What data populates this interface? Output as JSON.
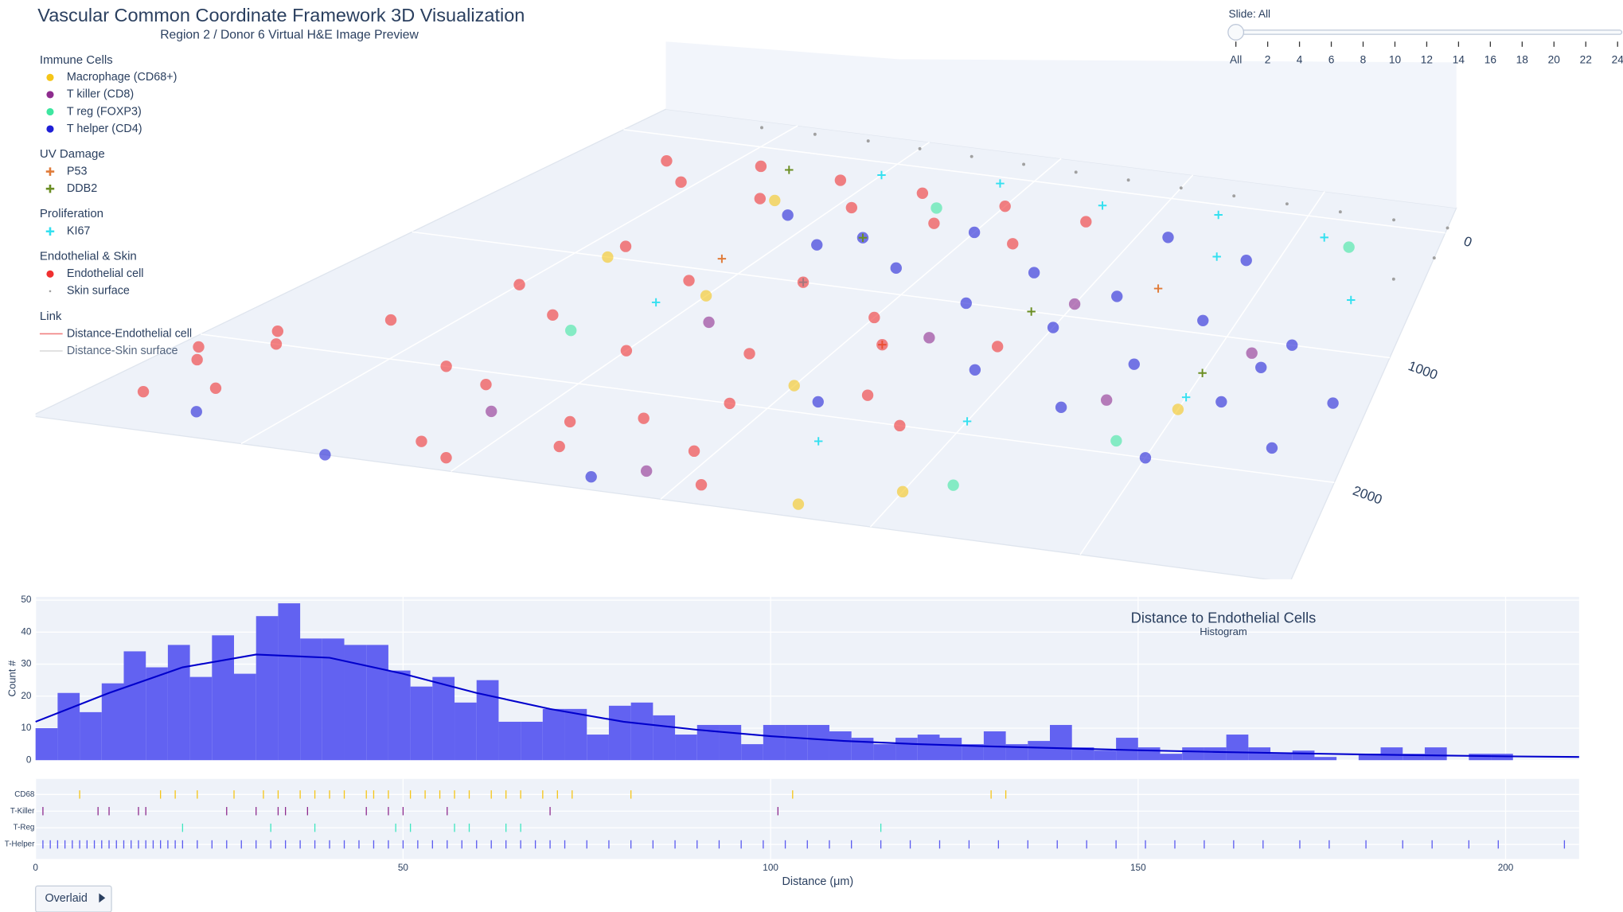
{
  "header": {
    "title": "Vascular Common Coordinate Framework 3D Visualization",
    "subtitle": "Region 2 / Donor 6  Virtual H&E Image Preview"
  },
  "slider": {
    "label": "Slide: All",
    "steps": [
      "All",
      "2",
      "4",
      "6",
      "8",
      "10",
      "12",
      "14",
      "16",
      "18",
      "20",
      "22",
      "24"
    ]
  },
  "button": {
    "label": "Overlaid"
  },
  "chart_data": [
    {
      "type": "scatter3d",
      "xlim": [
        0,
        3000
      ],
      "ylim": [
        -200,
        2800
      ],
      "yticks": [
        0,
        1000,
        2000
      ],
      "legend_groups": [
        {
          "title": "Immune Cells",
          "series": [
            {
              "name": "Macrophage (CD68+)",
              "color": "#f5c518",
              "symbol": "circle",
              "x": [
                1000,
                1500,
                2000,
                2500,
                800,
                1800,
                600
              ],
              "y": [
                1200,
                1800,
                2500,
                1600,
                400,
                2700,
                1000
              ]
            },
            {
              "name": "T killer (CD8)",
              "color": "#8e2c8e",
              "symbol": "circle",
              "x": [
                1100,
                1700,
                2300,
                2600,
                900,
                2000,
                1400
              ],
              "y": [
                1400,
                1300,
                1600,
                1100,
                2300,
                900,
                2600
              ]
            },
            {
              "name": "T reg (FOXP3)",
              "color": "#3ee6a0",
              "symbol": "circle",
              "x": [
                1300,
                2700,
                2100,
                800,
                2400
              ],
              "y": [
                300,
                200,
                2400,
                1600,
                1900
              ]
            },
            {
              "name": "T helper (CD4)",
              "color": "#1f1fd6",
              "symbol": "circle",
              "x": [
                900,
                1200,
                1500,
                1800,
                2100,
                2400,
                2700,
                2600,
                2300,
                2000,
                1700,
                1400,
                1100,
                2800,
                2500,
                2200,
                1900,
                1600,
                300,
                700,
                2650,
                2400,
                2100,
                2900,
                1300
              ],
              "y": [
                500,
                600,
                450,
                700,
                800,
                900,
                1000,
                1500,
                1300,
                1100,
                1000,
                800,
                700,
                1800,
                2000,
                1700,
                1500,
                1900,
                2600,
                2800,
                1200,
                400,
                300,
                1400,
                2700
              ]
            }
          ]
        },
        {
          "title": "UV Damage",
          "series": [
            {
              "name": "P53",
              "color": "#e07b39",
              "symbol": "cross",
              "x": [
                900,
                1600,
                2200
              ],
              "y": [
                900,
                1400,
                700
              ]
            },
            {
              "name": "DDB2",
              "color": "#6b8e23",
              "symbol": "cross",
              "x": [
                1200,
                1900,
                2500,
                700
              ],
              "y": [
                600,
                1000,
                1300,
                150
              ]
            }
          ]
        },
        {
          "title": "Proliferation",
          "series": [
            {
              "name": "KI67",
              "color": "#33e0f0",
              "symbol": "cross",
              "x": [
                1000,
                1400,
                1800,
                2200,
                2600,
                2800,
                1200,
                2000,
                2500,
                900,
                1700,
                2300
              ],
              "y": [
                100,
                50,
                120,
                80,
                150,
                600,
                1000,
                1900,
                1500,
                1300,
                2200,
                400
              ]
            }
          ]
        },
        {
          "title": "Endothelial & Skin",
          "series": [
            {
              "name": "Endothelial cell",
              "color": "#f03030",
              "symbol": "circle",
              "x": [
                300,
                600,
                900,
                1200,
                1500,
                1800,
                450,
                750,
                1050,
                1350,
                1650,
                150,
                100,
                200,
                250,
                50,
                120,
                600,
                900,
                1200,
                1500,
                700,
                1000,
                1300,
                1600,
                1900,
                800,
                1100,
                1400,
                1700,
                500,
                850,
                1150,
                1450,
                350,
                650,
                950,
                1250,
                1550,
                1850
              ],
              "y": [
                200,
                150,
                180,
                200,
                220,
                260,
                350,
                400,
                380,
                420,
                500,
                1900,
                2200,
                2000,
                2400,
                2100,
                2500,
                900,
                1100,
                1000,
                1200,
                1500,
                1700,
                1600,
                1400,
                1300,
                2100,
                2300,
                2000,
                1800,
                1300,
                2600,
                2500,
                2400,
                1700,
                2000,
                2700,
                2200,
                2650,
                2000
              ]
            },
            {
              "name": "Skin surface",
              "color": "#a0a0a0",
              "symbol": "dot",
              "x": [
                400,
                600,
                800,
                1000,
                1200,
                1400,
                1600,
                1800,
                2000,
                2200,
                2400,
                2600,
                2800,
                3000,
                3000,
                2900
              ],
              "y": [
                -150,
                -150,
                -150,
                -140,
                -130,
                -120,
                -110,
                -100,
                -90,
                -80,
                -70,
                -60,
                -50,
                -40,
                200,
                400
              ]
            }
          ]
        },
        {
          "title": "Link",
          "series": [
            {
              "name": "Distance-Endothelial cell",
              "color": "#f08080",
              "symbol": "line"
            },
            {
              "name": "Distance-Skin surface",
              "color": "#d8d8d8",
              "symbol": "line",
              "hidden": true
            }
          ]
        }
      ]
    },
    {
      "type": "histogram",
      "title": "Distance to Endothelial Cells",
      "subtitle": "Histogram",
      "y_label": "Count #",
      "color": "#5a5af0",
      "bins": [
        0,
        3,
        6,
        9,
        12,
        15,
        18,
        21,
        24,
        27,
        30,
        33,
        36,
        39,
        42,
        45,
        48,
        51,
        54,
        57,
        60,
        63,
        66,
        69,
        72,
        75,
        78,
        81,
        84,
        87,
        90,
        93,
        96,
        99,
        102,
        105,
        108,
        111,
        114,
        117,
        120,
        123,
        126,
        129,
        132,
        135,
        138,
        141,
        144,
        147,
        150,
        153,
        156,
        159,
        162,
        165,
        168,
        171,
        174,
        177,
        180,
        183,
        186,
        189,
        192,
        195,
        198,
        201
      ],
      "counts": [
        10,
        21,
        15,
        24,
        34,
        29,
        36,
        26,
        39,
        27,
        45,
        49,
        38,
        38,
        36,
        36,
        28,
        23,
        26,
        18,
        25,
        12,
        12,
        16,
        16,
        8,
        17,
        18,
        14,
        8,
        11,
        11,
        5,
        11,
        11,
        11,
        9,
        7,
        5,
        7,
        8,
        7,
        5,
        9,
        5,
        6,
        11,
        4,
        3,
        7,
        4,
        2,
        4,
        4,
        8,
        4,
        2,
        3,
        1,
        0,
        2,
        4,
        2,
        4,
        0,
        2,
        2
      ],
      "curve": {
        "color": "#0000cc",
        "x": [
          0,
          10,
          20,
          30,
          40,
          50,
          60,
          70,
          80,
          90,
          100,
          110,
          120,
          130,
          140,
          150,
          160,
          170,
          180,
          190,
          200,
          210
        ],
        "values": [
          12,
          21,
          29,
          33,
          32,
          27,
          21,
          16,
          12,
          9.5,
          7.5,
          6,
          5,
          4.3,
          3.7,
          3.1,
          2.6,
          2.2,
          1.8,
          1.5,
          1.2,
          1.0
        ]
      },
      "xlim": [
        0,
        210
      ],
      "xticks": [
        0,
        50,
        100,
        150,
        200
      ],
      "ylim": [
        0,
        51
      ],
      "yticks": [
        0,
        10,
        20,
        30,
        40,
        50
      ],
      "grid": true
    },
    {
      "type": "rug",
      "x_label": "Distance (μm)",
      "xlim": [
        0,
        210
      ],
      "xticks": [
        0,
        50,
        100,
        150,
        200
      ],
      "grid": true,
      "series": [
        {
          "name": "CD68",
          "color": "#f5c518",
          "values": [
            6,
            17,
            19,
            22,
            27,
            31,
            33,
            36,
            38,
            40,
            42,
            45,
            46,
            48,
            51,
            53,
            55,
            57,
            59,
            62,
            64,
            66,
            69,
            71,
            73,
            81,
            103,
            130,
            132
          ]
        },
        {
          "name": "T-Killer",
          "color": "#8e2c8e",
          "values": [
            1,
            8.5,
            10,
            14,
            15,
            26,
            30,
            33,
            34,
            37,
            45,
            48,
            50,
            56,
            70,
            101
          ]
        },
        {
          "name": "T-Reg",
          "color": "#3ee6c0",
          "values": [
            20,
            32,
            38,
            49,
            51,
            57,
            59,
            64,
            66,
            115
          ]
        },
        {
          "name": "T-Helper",
          "color": "#5a5af0",
          "values": [
            1,
            2,
            3,
            4,
            5,
            6,
            7,
            8,
            9,
            10,
            11,
            12,
            13,
            14,
            15,
            16,
            17,
            18,
            19,
            20,
            22,
            24,
            26,
            28,
            30,
            32,
            34,
            36,
            38,
            40,
            42,
            44,
            46,
            48,
            50,
            52,
            54,
            56,
            58,
            60,
            62,
            64,
            66,
            68,
            70,
            72,
            75,
            78,
            81,
            84,
            87,
            90,
            93,
            96,
            99,
            102,
            105,
            108,
            111,
            115,
            119,
            123,
            127,
            131,
            135,
            139,
            143,
            147,
            151,
            155,
            159,
            163,
            167,
            172,
            176,
            181,
            186,
            190,
            195,
            199,
            208
          ]
        }
      ]
    }
  ]
}
